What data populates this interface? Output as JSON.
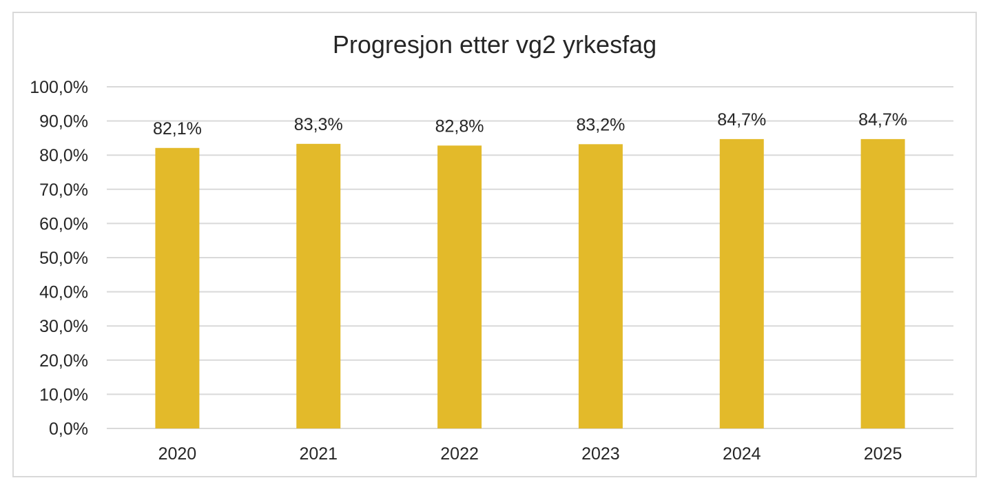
{
  "chart_data": {
    "type": "bar",
    "title": "Progresjon etter vg2 yrkesfag",
    "xlabel": "",
    "ylabel": "",
    "categories": [
      "2020",
      "2021",
      "2022",
      "2023",
      "2024",
      "2025"
    ],
    "values": [
      82.1,
      83.3,
      82.8,
      83.2,
      84.7,
      84.7
    ],
    "data_labels": [
      "82,1%",
      "83,3%",
      "82,8%",
      "83,2%",
      "84,7%",
      "84,7%"
    ],
    "ylim": [
      0,
      100
    ],
    "y_ticks": [
      0,
      10,
      20,
      30,
      40,
      50,
      60,
      70,
      80,
      90,
      100
    ],
    "y_tick_labels": [
      "0,0%",
      "10,0%",
      "20,0%",
      "30,0%",
      "40,0%",
      "50,0%",
      "60,0%",
      "70,0%",
      "80,0%",
      "90,0%",
      "100,0%"
    ],
    "grid": true,
    "legend": "none",
    "colors": {
      "bar": "#E3BA2A",
      "grid": "#d9d9d9",
      "text": "#262626",
      "frame": "#d9d9d9"
    }
  }
}
